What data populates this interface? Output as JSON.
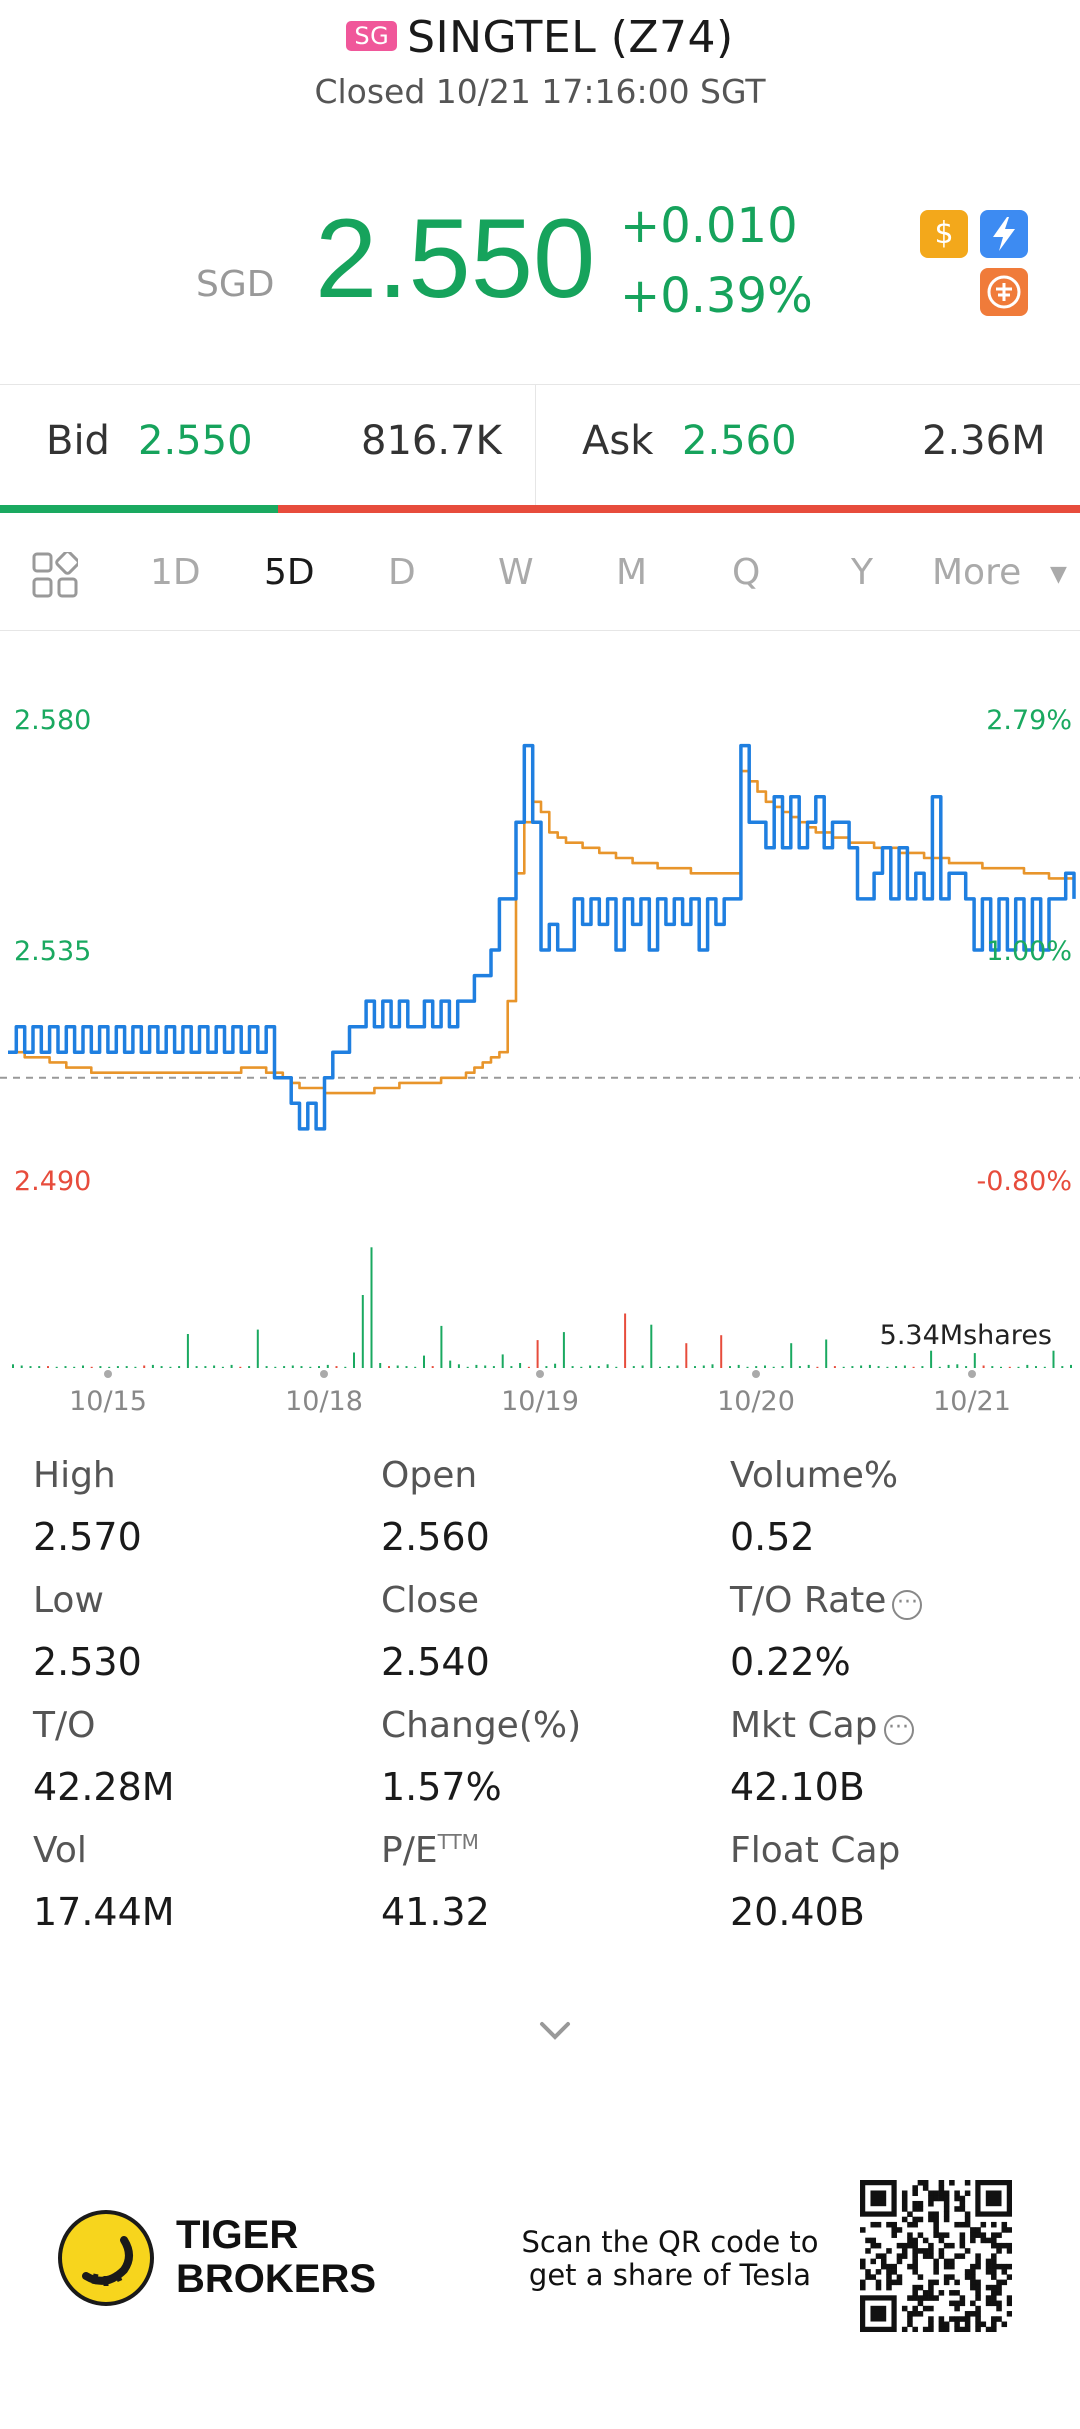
{
  "header": {
    "market_badge": "SG",
    "title": "SINGTEL (Z74)",
    "status": "Closed 10/21 17:16:00 SGT"
  },
  "quote": {
    "currency": "SGD",
    "price": "2.550",
    "change": "+0.010",
    "change_pct": "+0.39%",
    "up_color": "#16a35c",
    "icons": [
      "dollar-icon",
      "flash-icon",
      "shortable-icon"
    ]
  },
  "bid_ask": {
    "bid_label": "Bid",
    "bid_price": "2.550",
    "bid_volume": "816.7K",
    "ask_label": "Ask",
    "ask_price": "2.560",
    "ask_volume": "2.36M",
    "bid_ratio": 0.257
  },
  "tabs": {
    "items": [
      "1D",
      "5D",
      "D",
      "W",
      "M",
      "Q",
      "Y",
      "More"
    ],
    "active": "5D"
  },
  "chart_data": {
    "type": "line",
    "price_axis": {
      "labels": [
        "2.580",
        "2.535",
        "2.490"
      ],
      "ylim": [
        2.49,
        2.58
      ]
    },
    "pct_axis": {
      "labels": [
        "2.79%",
        "1.00%",
        "-0.80%"
      ]
    },
    "x_labels": [
      "10/15",
      "10/18",
      "10/19",
      "10/20",
      "10/21"
    ],
    "prev_close": 2.51,
    "volume_label": "5.34Mshares",
    "series": [
      {
        "values": [
          2.515,
          2.52,
          2.515,
          2.52,
          2.515,
          2.52,
          2.515,
          2.52,
          2.515,
          2.52,
          2.515,
          2.52,
          2.515,
          2.52,
          2.515,
          2.52,
          2.515,
          2.52,
          2.515,
          2.52,
          2.515,
          2.52,
          2.515,
          2.52,
          2.515,
          2.52,
          2.515,
          2.52,
          2.515,
          2.52,
          2.515,
          2.52,
          2.51,
          2.51,
          2.505,
          2.5,
          2.505,
          2.5,
          2.51,
          2.515,
          2.515,
          2.52,
          2.52,
          2.525,
          2.52,
          2.525,
          2.52,
          2.525,
          2.52,
          2.52,
          2.525,
          2.52,
          2.525,
          2.52,
          2.525,
          2.525,
          2.53,
          2.53,
          2.535,
          2.545,
          2.545,
          2.56,
          2.575,
          2.56,
          2.535,
          2.54,
          2.535,
          2.535,
          2.545,
          2.54,
          2.545,
          2.54,
          2.545,
          2.535,
          2.545,
          2.54,
          2.545,
          2.535,
          2.545,
          2.54,
          2.545,
          2.54,
          2.545,
          2.535,
          2.545,
          2.54,
          2.545,
          2.545,
          2.575,
          2.56,
          2.56,
          2.555,
          2.565,
          2.555,
          2.565,
          2.555,
          2.56,
          2.565,
          2.555,
          2.56,
          2.56,
          2.555,
          2.545,
          2.545,
          2.55,
          2.555,
          2.545,
          2.555,
          2.545,
          2.55,
          2.545,
          2.565,
          2.545,
          2.55,
          2.55,
          2.545,
          2.535,
          2.545,
          2.535,
          2.545,
          2.535,
          2.545,
          2.535,
          2.545,
          2.535,
          2.545,
          2.545,
          2.55,
          2.545
        ],
        "color": "#1f7fe0"
      },
      {
        "values": [
          2.515,
          2.515,
          2.514,
          2.514,
          2.514,
          2.513,
          2.513,
          2.512,
          2.512,
          2.512,
          2.511,
          2.511,
          2.511,
          2.511,
          2.511,
          2.511,
          2.511,
          2.511,
          2.511,
          2.511,
          2.511,
          2.511,
          2.511,
          2.511,
          2.511,
          2.511,
          2.511,
          2.511,
          2.512,
          2.512,
          2.512,
          2.511,
          2.511,
          2.51,
          2.509,
          2.508,
          2.508,
          2.508,
          2.507,
          2.507,
          2.507,
          2.507,
          2.507,
          2.507,
          2.508,
          2.508,
          2.508,
          2.509,
          2.509,
          2.509,
          2.509,
          2.509,
          2.51,
          2.51,
          2.51,
          2.511,
          2.512,
          2.513,
          2.514,
          2.515,
          2.525,
          2.55,
          2.56,
          2.564,
          2.562,
          2.558,
          2.557,
          2.556,
          2.556,
          2.555,
          2.555,
          2.554,
          2.554,
          2.553,
          2.553,
          2.552,
          2.552,
          2.552,
          2.551,
          2.551,
          2.551,
          2.551,
          2.55,
          2.55,
          2.55,
          2.55,
          2.55,
          2.55,
          2.57,
          2.568,
          2.566,
          2.564,
          2.563,
          2.562,
          2.561,
          2.56,
          2.559,
          2.558,
          2.558,
          2.557,
          2.557,
          2.556,
          2.556,
          2.556,
          2.555,
          2.555,
          2.555,
          2.554,
          2.554,
          2.554,
          2.553,
          2.553,
          2.553,
          2.552,
          2.552,
          2.552,
          2.552,
          2.551,
          2.551,
          2.551,
          2.551,
          2.551,
          2.55,
          2.55,
          2.55,
          2.549,
          2.549,
          2.549,
          2.548
        ],
        "color": "#e8952b"
      }
    ],
    "volume": {
      "heights": [
        6,
        4,
        3,
        3,
        3,
        2,
        3,
        2,
        4,
        2,
        3,
        2,
        3,
        3,
        2,
        4,
        5,
        3,
        2,
        3,
        55,
        3,
        3,
        4,
        2,
        5,
        2,
        3,
        62,
        3,
        2,
        3,
        4,
        3,
        2,
        3,
        5,
        3,
        2,
        25,
        118,
        195,
        8,
        3,
        4,
        3,
        2,
        20,
        3,
        68,
        12,
        6,
        2,
        5,
        4,
        3,
        22,
        3,
        8,
        2,
        45,
        3,
        7,
        58,
        3,
        2,
        4,
        3,
        6,
        2,
        88,
        3,
        4,
        70,
        2,
        3,
        4,
        40,
        3,
        4,
        6,
        53,
        3,
        5,
        2,
        3,
        4,
        2,
        3,
        40,
        3,
        5,
        2,
        46,
        3,
        2,
        3,
        4,
        5,
        3,
        2,
        3,
        4,
        2,
        3,
        28,
        2,
        5,
        6,
        3,
        24,
        4,
        3,
        2,
        2,
        2,
        5,
        3,
        2,
        28,
        3,
        5
      ],
      "colors": [
        "#1aa960",
        "#e74c3c"
      ]
    }
  },
  "stats": [
    {
      "label": "High",
      "value": "2.570"
    },
    {
      "label": "Open",
      "value": "2.560"
    },
    {
      "label": "Volume%",
      "value": "0.52"
    },
    {
      "label": "Low",
      "value": "2.530"
    },
    {
      "label": "Close",
      "value": "2.540"
    },
    {
      "label": "T/O Rate",
      "value": "0.22%",
      "info": true
    },
    {
      "label": "T/O",
      "value": "42.28M"
    },
    {
      "label": "Change(%)",
      "value": "1.57%"
    },
    {
      "label": "Mkt Cap",
      "value": "42.10B",
      "info": true
    },
    {
      "label": "Vol",
      "value": "17.44M"
    },
    {
      "label": "P/E",
      "sup": "TTM",
      "value": "41.32"
    },
    {
      "label": "Float Cap",
      "value": "20.40B"
    }
  ],
  "footer": {
    "brand_line1": "TIGER",
    "brand_line2": "BROKERS",
    "promo_line1": "Scan the QR code to",
    "promo_line2": "get a share of Tesla"
  }
}
